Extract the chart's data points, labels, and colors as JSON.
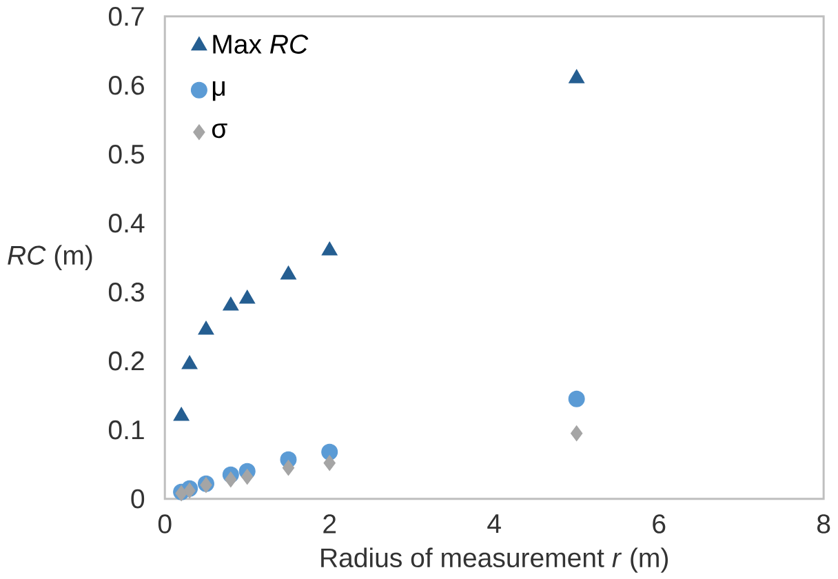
{
  "chart_data": {
    "type": "scatter",
    "xlabel": "Radius of measurement *r* (m)",
    "ylabel": "*RC* (m)",
    "x": [
      0.2,
      0.3,
      0.5,
      0.8,
      1,
      1.5,
      2,
      5
    ],
    "series": [
      {
        "name": "Max *RC*",
        "color": "#255e91",
        "marker": "triangle",
        "values": [
          0.12,
          0.195,
          0.245,
          0.28,
          0.29,
          0.325,
          0.36,
          0.61
        ]
      },
      {
        "name": "μ",
        "color": "#5b9bd5",
        "marker": "circle",
        "values": [
          0.01,
          0.015,
          0.022,
          0.035,
          0.04,
          0.057,
          0.068,
          0.145
        ]
      },
      {
        "name": "σ",
        "color": "#a5a5a5",
        "marker": "diamond",
        "values": [
          0.008,
          0.012,
          0.02,
          0.028,
          0.032,
          0.045,
          0.052,
          0.095
        ]
      }
    ],
    "xlim": [
      0,
      8
    ],
    "xticks": [
      0,
      2,
      4,
      6,
      8
    ],
    "ylim": [
      0,
      0.7
    ],
    "yticks": [
      0,
      0.1,
      0.2,
      0.3,
      0.4,
      0.5,
      0.6,
      0.7
    ],
    "legend": "top left",
    "grid": false
  }
}
